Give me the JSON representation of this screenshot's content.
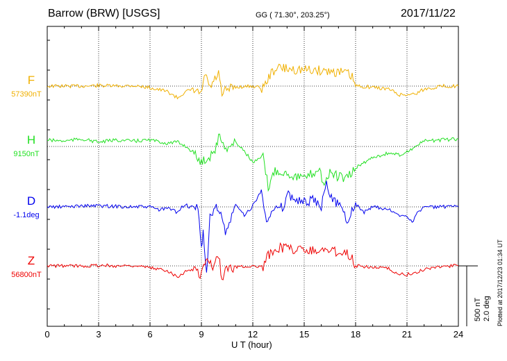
{
  "header": {
    "station": "Barrow (BRW)  [USGS]",
    "coords": "GG ( 71.30°, 203.25°)",
    "date": "2017/11/22"
  },
  "xaxis_label": "U T (hour)",
  "scale": {
    "nt": "500 nT",
    "deg": "2.0 deg"
  },
  "plotted": "Plotted at 2017/12/23 01:34 UT",
  "chart_data": {
    "type": "line",
    "xlim": [
      0,
      24
    ],
    "xticks": [
      "0",
      "3",
      "6",
      "9",
      "12",
      "15",
      "18",
      "21",
      "24"
    ],
    "grid": true,
    "series": [
      {
        "name": "F",
        "baseline": "57390nT",
        "color": "#f0b000",
        "x": [
          0,
          1,
          2,
          3,
          4,
          5,
          6,
          7,
          7.6,
          8,
          8.5,
          9,
          9.1,
          9.3,
          9.5,
          10,
          10.2,
          10.4,
          11,
          12,
          12.6,
          13,
          13.3,
          13.6,
          14,
          15,
          16,
          16.5,
          17,
          17.5,
          17.8,
          18,
          19,
          20,
          20.5,
          21,
          21.5,
          22,
          23,
          24
        ],
        "y": [
          0,
          0,
          0,
          5,
          0,
          5,
          -15,
          -50,
          -110,
          -60,
          -30,
          -80,
          40,
          90,
          -20,
          120,
          -100,
          -40,
          -10,
          0,
          -20,
          100,
          160,
          170,
          160,
          150,
          145,
          140,
          130,
          120,
          80,
          0,
          -10,
          -30,
          -80,
          -80,
          -70,
          -30,
          0,
          0
        ]
      },
      {
        "name": "H",
        "baseline": "9150nT",
        "color": "#22e022",
        "x": [
          0,
          1,
          2,
          3,
          4,
          5,
          6,
          7,
          7.6,
          8,
          8.5,
          9,
          9.2,
          9.5,
          9.8,
          10,
          10.2,
          10.5,
          11,
          11.5,
          12,
          12.6,
          12.9,
          13.3,
          14,
          15,
          15.6,
          15.9,
          16.1,
          16.5,
          17,
          17.5,
          18,
          18.5,
          19,
          20,
          20.5,
          21,
          21.5,
          22,
          23,
          24
        ],
        "y": [
          60,
          50,
          70,
          40,
          60,
          50,
          60,
          30,
          40,
          10,
          -50,
          -150,
          -120,
          -90,
          -30,
          90,
          50,
          -20,
          40,
          -40,
          -150,
          -100,
          -380,
          -220,
          -250,
          -300,
          -240,
          -200,
          -350,
          -250,
          -280,
          -300,
          -200,
          -150,
          -100,
          -60,
          -80,
          -50,
          0,
          50,
          60,
          70
        ]
      },
      {
        "name": "D",
        "baseline": "-1.1deg",
        "color": "#0000ee",
        "x": [
          0,
          1,
          2,
          3,
          4,
          5,
          6,
          6.6,
          7,
          7.6,
          8,
          8.5,
          8.8,
          9,
          9.1,
          9.3,
          9.5,
          9.8,
          10,
          10.2,
          10.4,
          11,
          11.5,
          12,
          12.5,
          12.8,
          13.3,
          13.8,
          14,
          15,
          15.5,
          16,
          16.3,
          16.8,
          17,
          17.5,
          18,
          18.5,
          19,
          20,
          20.5,
          21,
          21.3,
          21.6,
          22,
          23,
          24
        ],
        "y": [
          0,
          0,
          10,
          10,
          5,
          0,
          0,
          -30,
          -10,
          -50,
          20,
          -10,
          -20,
          -400,
          -200,
          -650,
          -100,
          -20,
          0,
          -100,
          -260,
          20,
          -80,
          10,
          150,
          -100,
          -30,
          0,
          110,
          40,
          60,
          0,
          200,
          40,
          50,
          -120,
          30,
          -50,
          0,
          -30,
          -80,
          -80,
          -140,
          -60,
          0,
          0,
          0
        ]
      },
      {
        "name": "Z",
        "baseline": "56800nT",
        "color": "#ee0000",
        "x": [
          0,
          1,
          2,
          3,
          4,
          5,
          6,
          7,
          7.6,
          8,
          8.5,
          9,
          9.2,
          9.4,
          9.6,
          10,
          10.2,
          10.4,
          11,
          12,
          12.6,
          12.9,
          13.3,
          13.6,
          14,
          15,
          16,
          16.5,
          17,
          17.5,
          17.8,
          18,
          19,
          20,
          20.5,
          21,
          21.5,
          22,
          23,
          24
        ],
        "y": [
          0,
          0,
          0,
          5,
          0,
          5,
          -20,
          -40,
          -100,
          -60,
          -30,
          -80,
          20,
          80,
          -20,
          100,
          -120,
          -40,
          -10,
          0,
          -20,
          100,
          160,
          170,
          160,
          150,
          145,
          140,
          130,
          120,
          80,
          0,
          -10,
          -30,
          -80,
          -80,
          -70,
          -30,
          0,
          0
        ]
      }
    ]
  }
}
